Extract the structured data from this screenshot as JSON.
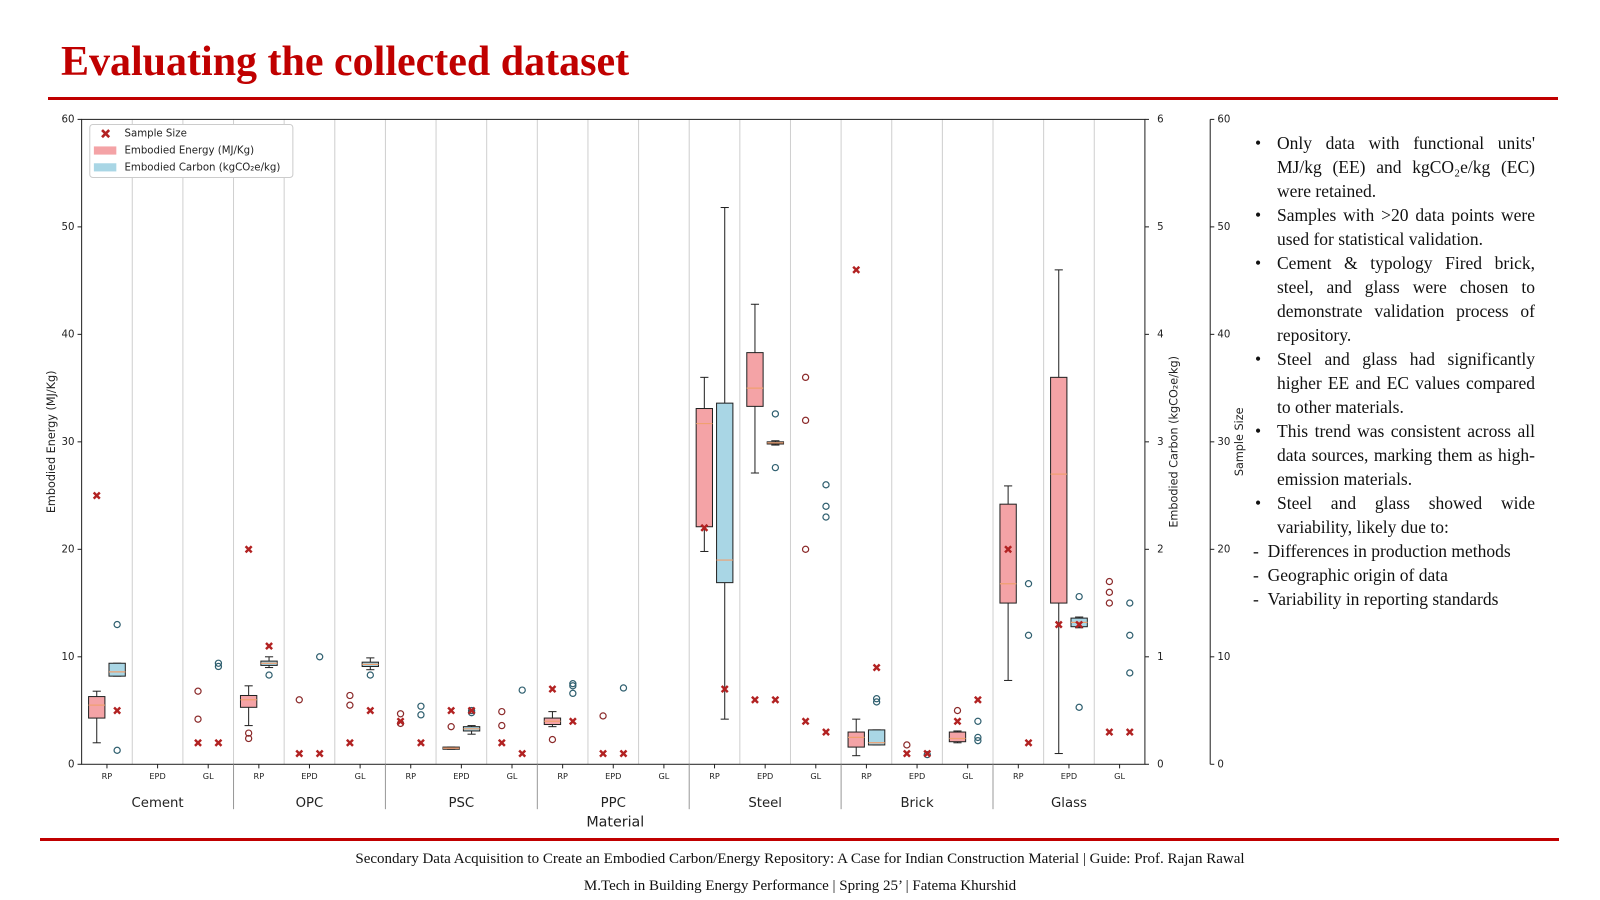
{
  "title": "Evaluating the collected dataset",
  "chart_data": {
    "type": "box",
    "x_label": "Material",
    "y_label": "Embodied Energy (MJ/Kg)",
    "y2_label": "Embodied Carbon (kgCO₂e/kg)",
    "y3_label": "Sample Size",
    "ylim": [
      0,
      60
    ],
    "yticks": [
      0,
      10,
      20,
      30,
      40,
      50,
      60
    ],
    "y2lim": [
      0,
      6
    ],
    "y2ticks": [
      0,
      1,
      2,
      3,
      4,
      5,
      6
    ],
    "y3lim": [
      0,
      60
    ],
    "y3ticks": [
      0,
      10,
      20,
      30,
      40,
      50,
      60
    ],
    "legend": "upper left",
    "grid": true,
    "series": [
      {
        "name": "Sample Size",
        "color": "#b22222"
      },
      {
        "name": "Embodied Energy (MJ/Kg)",
        "color": "#f4a3a6"
      },
      {
        "name": "Embodied Carbon (kgCO₂e/kg)",
        "color": "#a9d6e5"
      }
    ],
    "sources": [
      "RP",
      "EPD",
      "GL"
    ],
    "groups": [
      {
        "name": "Cement",
        "data": [
          {
            "ee": {
              "whislo": 2,
              "q1": 4.3,
              "med": 5.5,
              "q3": 6.3,
              "whishi": 6.8
            },
            "ee_pts": [],
            "ec": {
              "whislo": 0.82,
              "q1": 0.82,
              "med": 0.86,
              "q3": 0.94,
              "whishi": 0.94
            },
            "ec_pts": [
              1.3,
              0.13
            ],
            "n_ee": 25,
            "n_ec": 5
          },
          {
            "ee": null,
            "ee_pts": [],
            "ec": null,
            "ec_pts": [],
            "n_ee": null,
            "n_ec": null
          },
          {
            "ee": null,
            "ee_pts": [
              6.8,
              4.2
            ],
            "ec": null,
            "ec_pts": [
              0.94,
              0.91
            ],
            "n_ee": 2,
            "n_ec": 2
          }
        ]
      },
      {
        "name": "OPC",
        "data": [
          {
            "ee": {
              "whislo": 3.6,
              "q1": 5.3,
              "med": 6,
              "q3": 6.4,
              "whishi": 7.3
            },
            "ee_pts": [
              2.9,
              2.4
            ],
            "ec": {
              "whislo": 0.9,
              "q1": 0.92,
              "med": 0.94,
              "q3": 0.96,
              "whishi": 1.0
            },
            "ec_pts": [
              0.83
            ],
            "n_ee": 20,
            "n_ec": 11
          },
          {
            "ee": null,
            "ee_pts": [
              6
            ],
            "ec": null,
            "ec_pts": [
              1.0
            ],
            "n_ee": 1,
            "n_ec": 1
          },
          {
            "ee": null,
            "ee_pts": [
              6.4,
              5.5
            ],
            "ec": {
              "whislo": 0.88,
              "q1": 0.91,
              "med": 0.93,
              "q3": 0.95,
              "whishi": 0.99
            },
            "ec_pts": [
              0.83
            ],
            "n_ee": 2,
            "n_ec": 5
          }
        ]
      },
      {
        "name": "PSC",
        "data": [
          {
            "ee": null,
            "ee_pts": [
              4.7,
              3.8
            ],
            "ec": null,
            "ec_pts": [
              0.54,
              0.46
            ],
            "n_ee": 4,
            "n_ec": 2
          },
          {
            "ee": {
              "whislo": 1.4,
              "q1": 1.4,
              "med": 1.5,
              "q3": 1.6,
              "whishi": 1.6
            },
            "ee_pts": [
              3.5
            ],
            "ec": {
              "whislo": 0.28,
              "q1": 0.31,
              "med": 0.33,
              "q3": 0.35,
              "whishi": 0.36
            },
            "ec_pts": [
              0.48,
              0.5
            ],
            "n_ee": 5,
            "n_ec": 5
          },
          {
            "ee": null,
            "ee_pts": [
              4.9,
              3.6
            ],
            "ec": null,
            "ec_pts": [
              0.69
            ],
            "n_ee": 2,
            "n_ec": 1
          }
        ]
      },
      {
        "name": "PPC",
        "data": [
          {
            "ee": {
              "whislo": 3.5,
              "q1": 3.7,
              "med": 4,
              "q3": 4.3,
              "whishi": 4.9
            },
            "ee_pts": [
              2.3
            ],
            "ec": null,
            "ec_pts": [
              0.75,
              0.73,
              0.66
            ],
            "n_ee": 7,
            "n_ec": 4
          },
          {
            "ee": null,
            "ee_pts": [
              4.5
            ],
            "ec": null,
            "ec_pts": [
              0.71
            ],
            "n_ee": 1,
            "n_ec": 1
          },
          {
            "ee": null,
            "ee_pts": [],
            "ec": null,
            "ec_pts": [],
            "n_ee": null,
            "n_ec": null
          }
        ]
      },
      {
        "name": "Steel",
        "data": [
          {
            "ee": {
              "whislo": 19.8,
              "q1": 22.1,
              "med": 31.7,
              "q3": 33.1,
              "whishi": 36
            },
            "ee_pts": [],
            "ec": {
              "whislo": 0.42,
              "q1": 1.69,
              "med": 1.9,
              "q3": 3.36,
              "whishi": 5.18
            },
            "ec_pts": [],
            "n_ee": 22,
            "n_ec": 7
          },
          {
            "ee": {
              "whislo": 27.1,
              "q1": 33.3,
              "med": 35,
              "q3": 38.3,
              "whishi": 42.8
            },
            "ee_pts": [],
            "ec": {
              "whislo": 2.97,
              "q1": 2.98,
              "med": 2.99,
              "q3": 3.0,
              "whishi": 3.01
            },
            "ec_pts": [
              3.26,
              2.76
            ],
            "n_ee": 6,
            "n_ec": 6
          },
          {
            "ee": null,
            "ee_pts": [
              36,
              32,
              20
            ],
            "ec": null,
            "ec_pts": [
              2.6,
              2.4,
              2.3
            ],
            "n_ee": 4,
            "n_ec": 3
          }
        ]
      },
      {
        "name": "Brick",
        "data": [
          {
            "ee": {
              "whislo": 0.8,
              "q1": 1.6,
              "med": 2.5,
              "q3": 3,
              "whishi": 4.2
            },
            "ee_pts": [],
            "ec": {
              "whislo": 0.18,
              "q1": 0.18,
              "med": 0.2,
              "q3": 0.32,
              "whishi": 0.32
            },
            "ec_pts": [
              0.61,
              0.58
            ],
            "n_ee": 46,
            "n_ec": 9
          },
          {
            "ee": null,
            "ee_pts": [
              1.8
            ],
            "ec": null,
            "ec_pts": [
              0.09
            ],
            "n_ee": 1,
            "n_ec": 1
          },
          {
            "ee": {
              "whislo": 2,
              "q1": 2.1,
              "med": 2.4,
              "q3": 3,
              "whishi": 3.1
            },
            "ee_pts": [
              5
            ],
            "ec": null,
            "ec_pts": [
              0.4,
              0.25,
              0.22
            ],
            "n_ee": 4,
            "n_ec": 6
          }
        ]
      },
      {
        "name": "Glass",
        "data": [
          {
            "ee": {
              "whislo": 7.8,
              "q1": 15,
              "med": 16.8,
              "q3": 24.2,
              "whishi": 25.9
            },
            "ee_pts": [],
            "ec": null,
            "ec_pts": [
              1.68,
              1.2
            ],
            "n_ee": 20,
            "n_ec": 2
          },
          {
            "ee": {
              "whislo": 1,
              "q1": 15,
              "med": 27,
              "q3": 36,
              "whishi": 46
            },
            "ee_pts": [],
            "ec": {
              "whislo": 1.27,
              "q1": 1.28,
              "med": 1.32,
              "q3": 1.36,
              "whishi": 1.37
            },
            "ec_pts": [
              1.56,
              0.53
            ],
            "n_ee": 13,
            "n_ec": 13
          },
          {
            "ee": null,
            "ee_pts": [
              17,
              16,
              15
            ],
            "ec": null,
            "ec_pts": [
              1.5,
              1.2,
              0.85
            ],
            "n_ee": 3,
            "n_ec": 3
          }
        ]
      }
    ]
  },
  "notes": {
    "bullets": [
      "Only data with functional units' MJ/kg (EE) and kgCO₂e/kg (EC) were retained.",
      "Samples with >20 data points were used for statistical validation.",
      "Cement & typology Fired brick, steel, and glass were chosen to demonstrate validation process of repository.",
      "Steel and glass had significantly higher EE and EC values compared to other materials.",
      "This trend was consistent across all data sources, marking them as high-emission materials.",
      "Steel and glass showed wide variability, likely due to:"
    ],
    "sub_items": [
      "Differences in production methods",
      "Geographic origin of data",
      "Variability in reporting standards"
    ]
  },
  "footer": [
    "Secondary Data Acquisition to Create an Embodied Carbon/Energy Repository: A Case for Indian Construction Material | Guide: Prof. Rajan Rawal",
    "M.Tech in Building Energy Performance | Spring  25’ | Fatema Khurshid"
  ]
}
